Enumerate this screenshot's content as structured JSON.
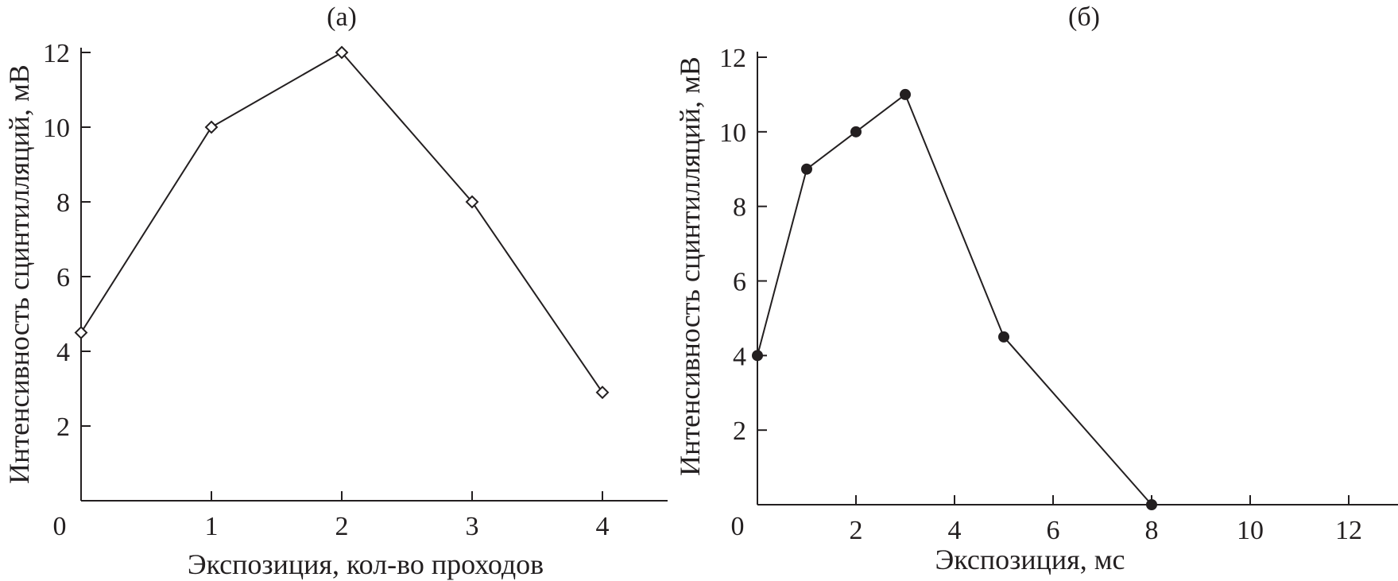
{
  "chart_data": [
    {
      "type": "line",
      "title": "(а)",
      "xlabel": "Экспозиция, кол-во проходов",
      "ylabel": "Интенсивность сцинтилляций, мВ",
      "xlim": [
        0,
        4.5
      ],
      "ylim": [
        0,
        12
      ],
      "xticks": [
        0,
        1,
        2,
        3,
        4
      ],
      "yticks": [
        2,
        4,
        6,
        8,
        10,
        12
      ],
      "origin_label": "0",
      "grid": false,
      "marker": "open-diamond",
      "series": [
        {
          "x": [
            0,
            1,
            2,
            3,
            4
          ],
          "y": [
            4.5,
            10,
            12,
            8,
            2.9
          ]
        }
      ]
    },
    {
      "type": "line",
      "title": "(б)",
      "xlabel": "Экспозиция, мс",
      "ylabel": "Интенсивность сцинтилляций, мВ",
      "xlim": [
        0,
        13
      ],
      "ylim": [
        0,
        12
      ],
      "xticks": [
        2,
        4,
        6,
        8,
        10,
        12
      ],
      "yticks": [
        2,
        4,
        6,
        8,
        10,
        12
      ],
      "origin_label": "0",
      "grid": false,
      "marker": "filled-circle",
      "series": [
        {
          "x": [
            0,
            1,
            2,
            3,
            5,
            8
          ],
          "y": [
            4,
            9,
            10,
            11,
            4.5,
            0
          ]
        }
      ]
    }
  ]
}
